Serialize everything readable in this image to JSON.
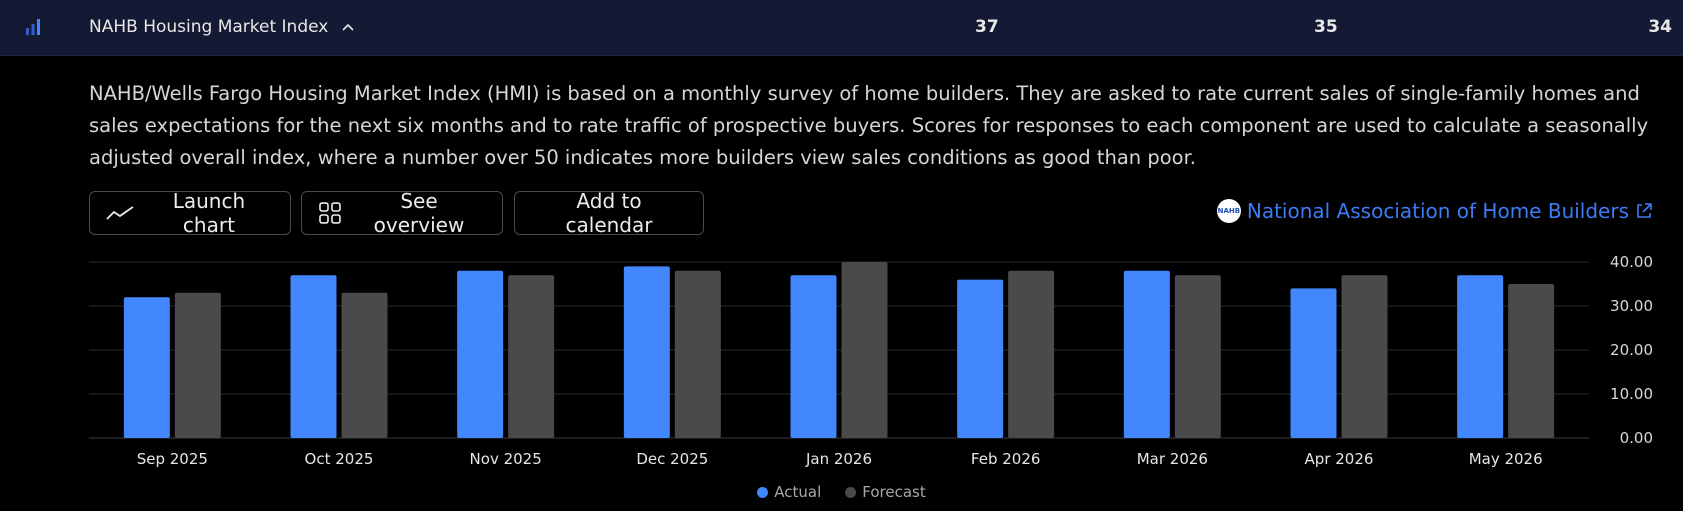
{
  "header": {
    "title": "NAHB Housing Market Index",
    "actual": "37",
    "forecast": "35",
    "prior": "34"
  },
  "description": "NAHB/Wells Fargo Housing Market Index (HMI) is based on a monthly survey of home builders. They are asked to rate current sales of single-family homes and sales expectations for the next six months and to rate traffic of prospective buyers. Scores for responses to each component are used to calculate a seasonally adjusted overall index, where a number over 50 indicates more builders view sales conditions as good than poor.",
  "buttons": {
    "launch_chart": "Launch chart",
    "see_overview": "See overview",
    "add_to_calendar": "Add to calendar"
  },
  "source": {
    "label": "National Association of Home Builders",
    "logo_text": "NAHB"
  },
  "colors": {
    "actual": "#4287fe",
    "forecast": "#4a4a4a",
    "link": "#3d7bf5",
    "header_bg": "#141a33"
  },
  "chart_data": {
    "type": "bar",
    "categories": [
      "Sep 2025",
      "Oct 2025",
      "Nov 2025",
      "Dec 2025",
      "Jan 2026",
      "Feb 2026",
      "Mar 2026",
      "Apr 2026",
      "May 2026"
    ],
    "series": [
      {
        "name": "Actual",
        "values": [
          32,
          37,
          38,
          39,
          37,
          36,
          38,
          34,
          37
        ]
      },
      {
        "name": "Forecast",
        "values": [
          33,
          33,
          37,
          38,
          40,
          38,
          37,
          37,
          35
        ]
      }
    ],
    "y_ticks": [
      "0.00",
      "10.00",
      "20.00",
      "30.00",
      "40.00"
    ],
    "ylim": [
      0,
      40
    ],
    "grid": true,
    "legend_position": "bottom-center"
  }
}
